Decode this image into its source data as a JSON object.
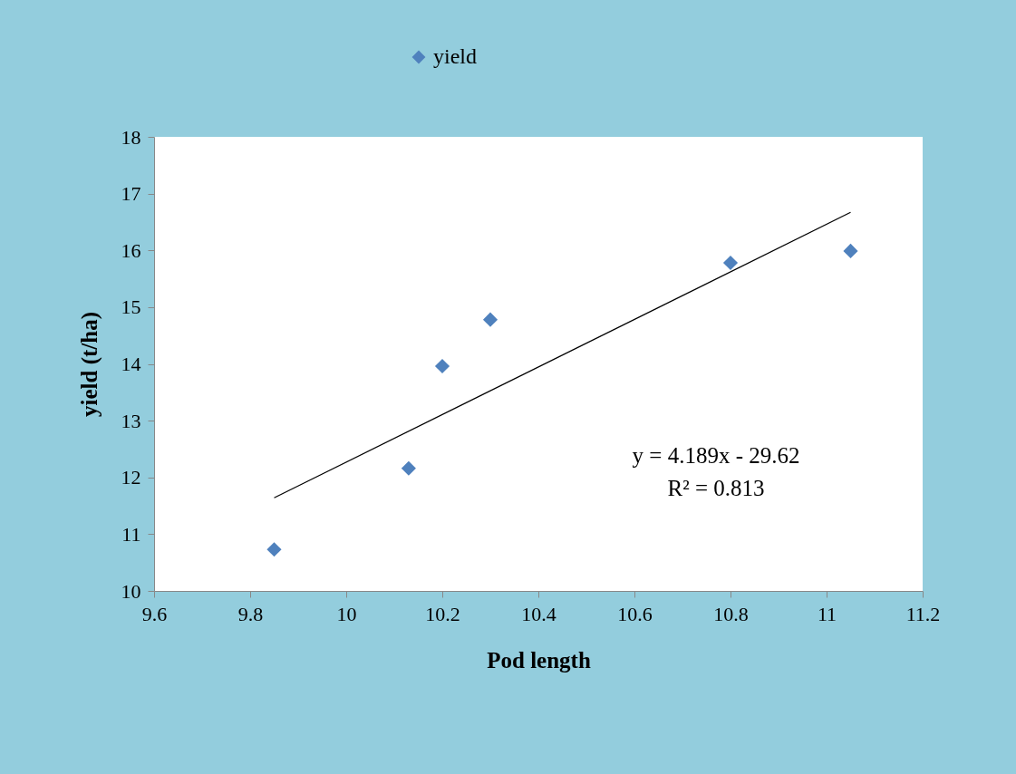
{
  "chart_data": {
    "type": "scatter",
    "xlabel": "Pod length",
    "ylabel": "yield (t/ha)",
    "series": [
      {
        "name": "yield",
        "color": "#4f81bd",
        "x": [
          9.85,
          10.13,
          10.2,
          10.3,
          10.8,
          11.05
        ],
        "values": [
          10.73,
          12.16,
          13.96,
          14.78,
          15.78,
          15.99
        ]
      },
      {
        "type": "line",
        "marker": "none",
        "color": "#000000",
        "x": [
          9.85,
          11.05
        ],
        "values": [
          11.64,
          16.67
        ]
      }
    ],
    "xlim": [
      9.6,
      11.2
    ],
    "xticks": [
      9.6,
      9.8,
      10,
      10.2,
      10.4,
      10.6,
      10.8,
      11,
      11.2
    ],
    "ylim": [
      10,
      18
    ],
    "yticks": [
      10,
      11,
      12,
      13,
      14,
      15,
      16,
      17,
      18
    ],
    "annotations": [
      "y = 4.189x - 29.62",
      "R² = 0.813"
    ],
    "marker": "diamond",
    "legend": "top",
    "grid": false
  }
}
